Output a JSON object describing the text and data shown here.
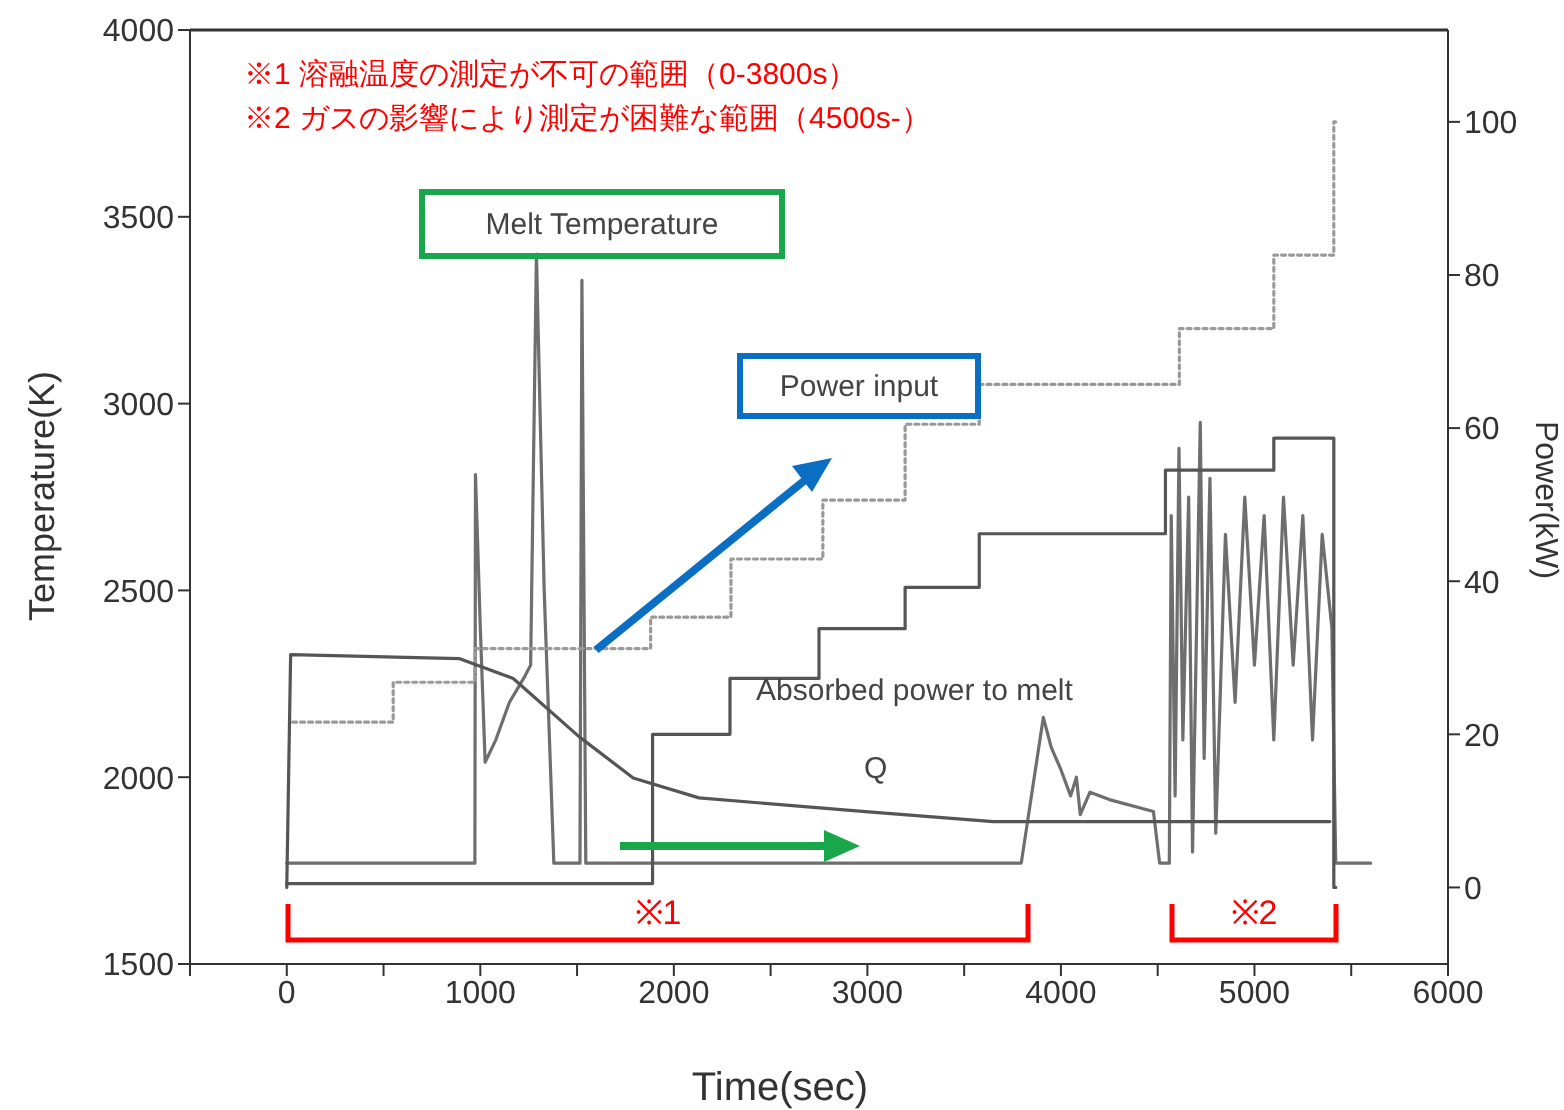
{
  "chart_data": {
    "type": "line",
    "xlabel": "Time(sec)",
    "ylabel": "Temperature(K)",
    "y2label": "Power(kW)",
    "annotations": [
      "※1  溶融温度の測定が不可の範囲（0-3800s）",
      "※2  ガスの影響により測定が困難な範囲（4500s-）",
      "※1",
      "※2"
    ],
    "xlim": [
      -500,
      6000
    ],
    "xticks": [
      {
        "value": -500,
        "label": null
      },
      0,
      {
        "value": 500,
        "label": null
      },
      1000,
      {
        "value": 1500,
        "label": null
      },
      2000,
      {
        "value": 2500,
        "label": null
      },
      3000,
      {
        "value": 3500,
        "label": null
      },
      4000,
      {
        "value": 4500,
        "label": null
      },
      5000,
      {
        "value": 5500,
        "label": null
      },
      6000
    ],
    "ylim": [
      1500,
      4000
    ],
    "yticks": [
      1500,
      2000,
      2500,
      3000,
      3500,
      4000
    ],
    "y2lim": [
      -10,
      112
    ],
    "y2ticks": [
      0,
      20,
      40,
      60,
      80,
      100
    ],
    "grid": false,
    "legend": false,
    "marker": "none",
    "series": [
      {
        "name": "Melt Temperature",
        "color": "#6e6e6e",
        "x": [
          0,
          972,
          975,
          1000,
          1025,
          1080,
          1150,
          1230,
          1260,
          1290,
          1330,
          1380,
          1515,
          1525,
          1545,
          3795,
          3909,
          3950,
          4000,
          4050,
          4080,
          4100,
          4150,
          4250,
          4478,
          4510,
          4560,
          4570,
          4590,
          4610,
          4630,
          4660,
          4680,
          4720,
          4740,
          4770,
          4800,
          4850,
          4900,
          4950,
          5000,
          5050,
          5100,
          5150,
          5200,
          5250,
          5300,
          5350,
          5400,
          5420,
          5600
        ],
        "values": [
          1770,
          1770,
          2810,
          2400,
          2040,
          2100,
          2200,
          2270,
          2300,
          3400,
          2500,
          1770,
          1770,
          3330,
          1770,
          1770,
          2160,
          2080,
          2020,
          1950,
          2000,
          1900,
          1960,
          1940,
          1908,
          1770,
          1770,
          2700,
          1950,
          2880,
          2100,
          2750,
          1800,
          2950,
          2050,
          2800,
          1850,
          2650,
          2200,
          2750,
          2300,
          2700,
          2100,
          2750,
          2300,
          2700,
          2100,
          2650,
          2400,
          1770,
          1770
        ]
      },
      {
        "name": "Power input",
        "type": "step",
        "axis": "y2",
        "line_style": "dotted",
        "color": "#9a9a9a",
        "x": [
          30,
          550,
          972,
          1880,
          2295,
          2770,
          3195,
          3578,
          4612,
          5100,
          5410,
          5420
        ],
        "values": [
          21.6,
          26.8,
          31.2,
          35.3,
          42.9,
          50.6,
          60.5,
          65.7,
          73,
          82.6,
          100,
          100
        ]
      },
      {
        "name": "Absorbed power to melt",
        "type": "step",
        "axis": "y2",
        "color": "#555555",
        "x": [
          0,
          1000,
          1890,
          2290,
          2750,
          3195,
          3578,
          4540,
          5100,
          5410,
          5420
        ],
        "values": [
          0.5,
          0.5,
          20,
          27.3,
          33.8,
          39.2,
          46.2,
          54.5,
          58.7,
          0,
          0
        ]
      },
      {
        "name": "Q",
        "axis": "y2",
        "color": "#555555",
        "x": [
          0,
          20,
          890,
          1170,
          1510,
          1790,
          2130,
          2990,
          3650,
          5390
        ],
        "values": [
          0,
          30.4,
          29.9,
          27.3,
          19.7,
          14.3,
          11.7,
          9.9,
          8.6,
          8.6
        ]
      }
    ]
  }
}
